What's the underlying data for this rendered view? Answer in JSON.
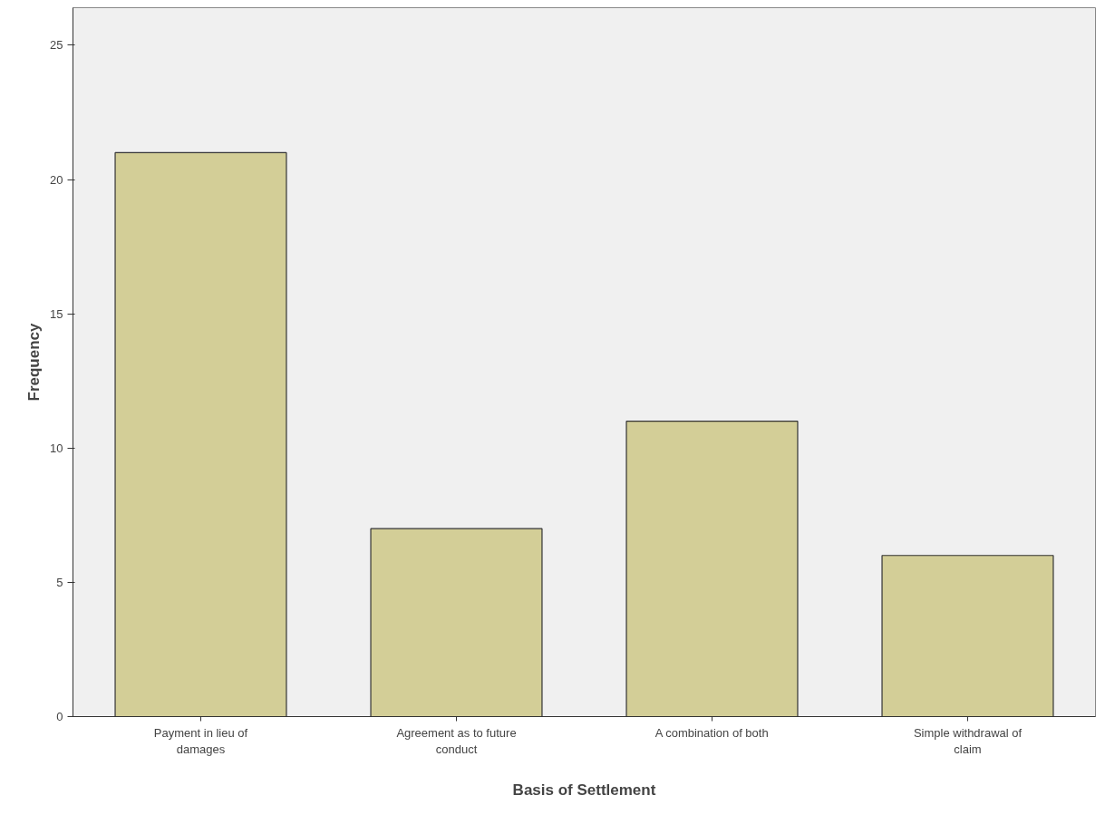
{
  "chart_data": {
    "type": "bar",
    "xlabel": "Basis of Settlement",
    "ylabel": "Frequency",
    "categories": [
      "Payment in lieu of damages",
      "Agreement as to future conduct",
      "A combination of both",
      "Simple withdrawal of claim"
    ],
    "values": [
      21,
      7,
      11,
      6
    ],
    "color": "#d3ce97",
    "ylim": [
      0,
      26.4
    ],
    "yticks": [
      0,
      5,
      10,
      15,
      20,
      25
    ],
    "grid": false
  }
}
